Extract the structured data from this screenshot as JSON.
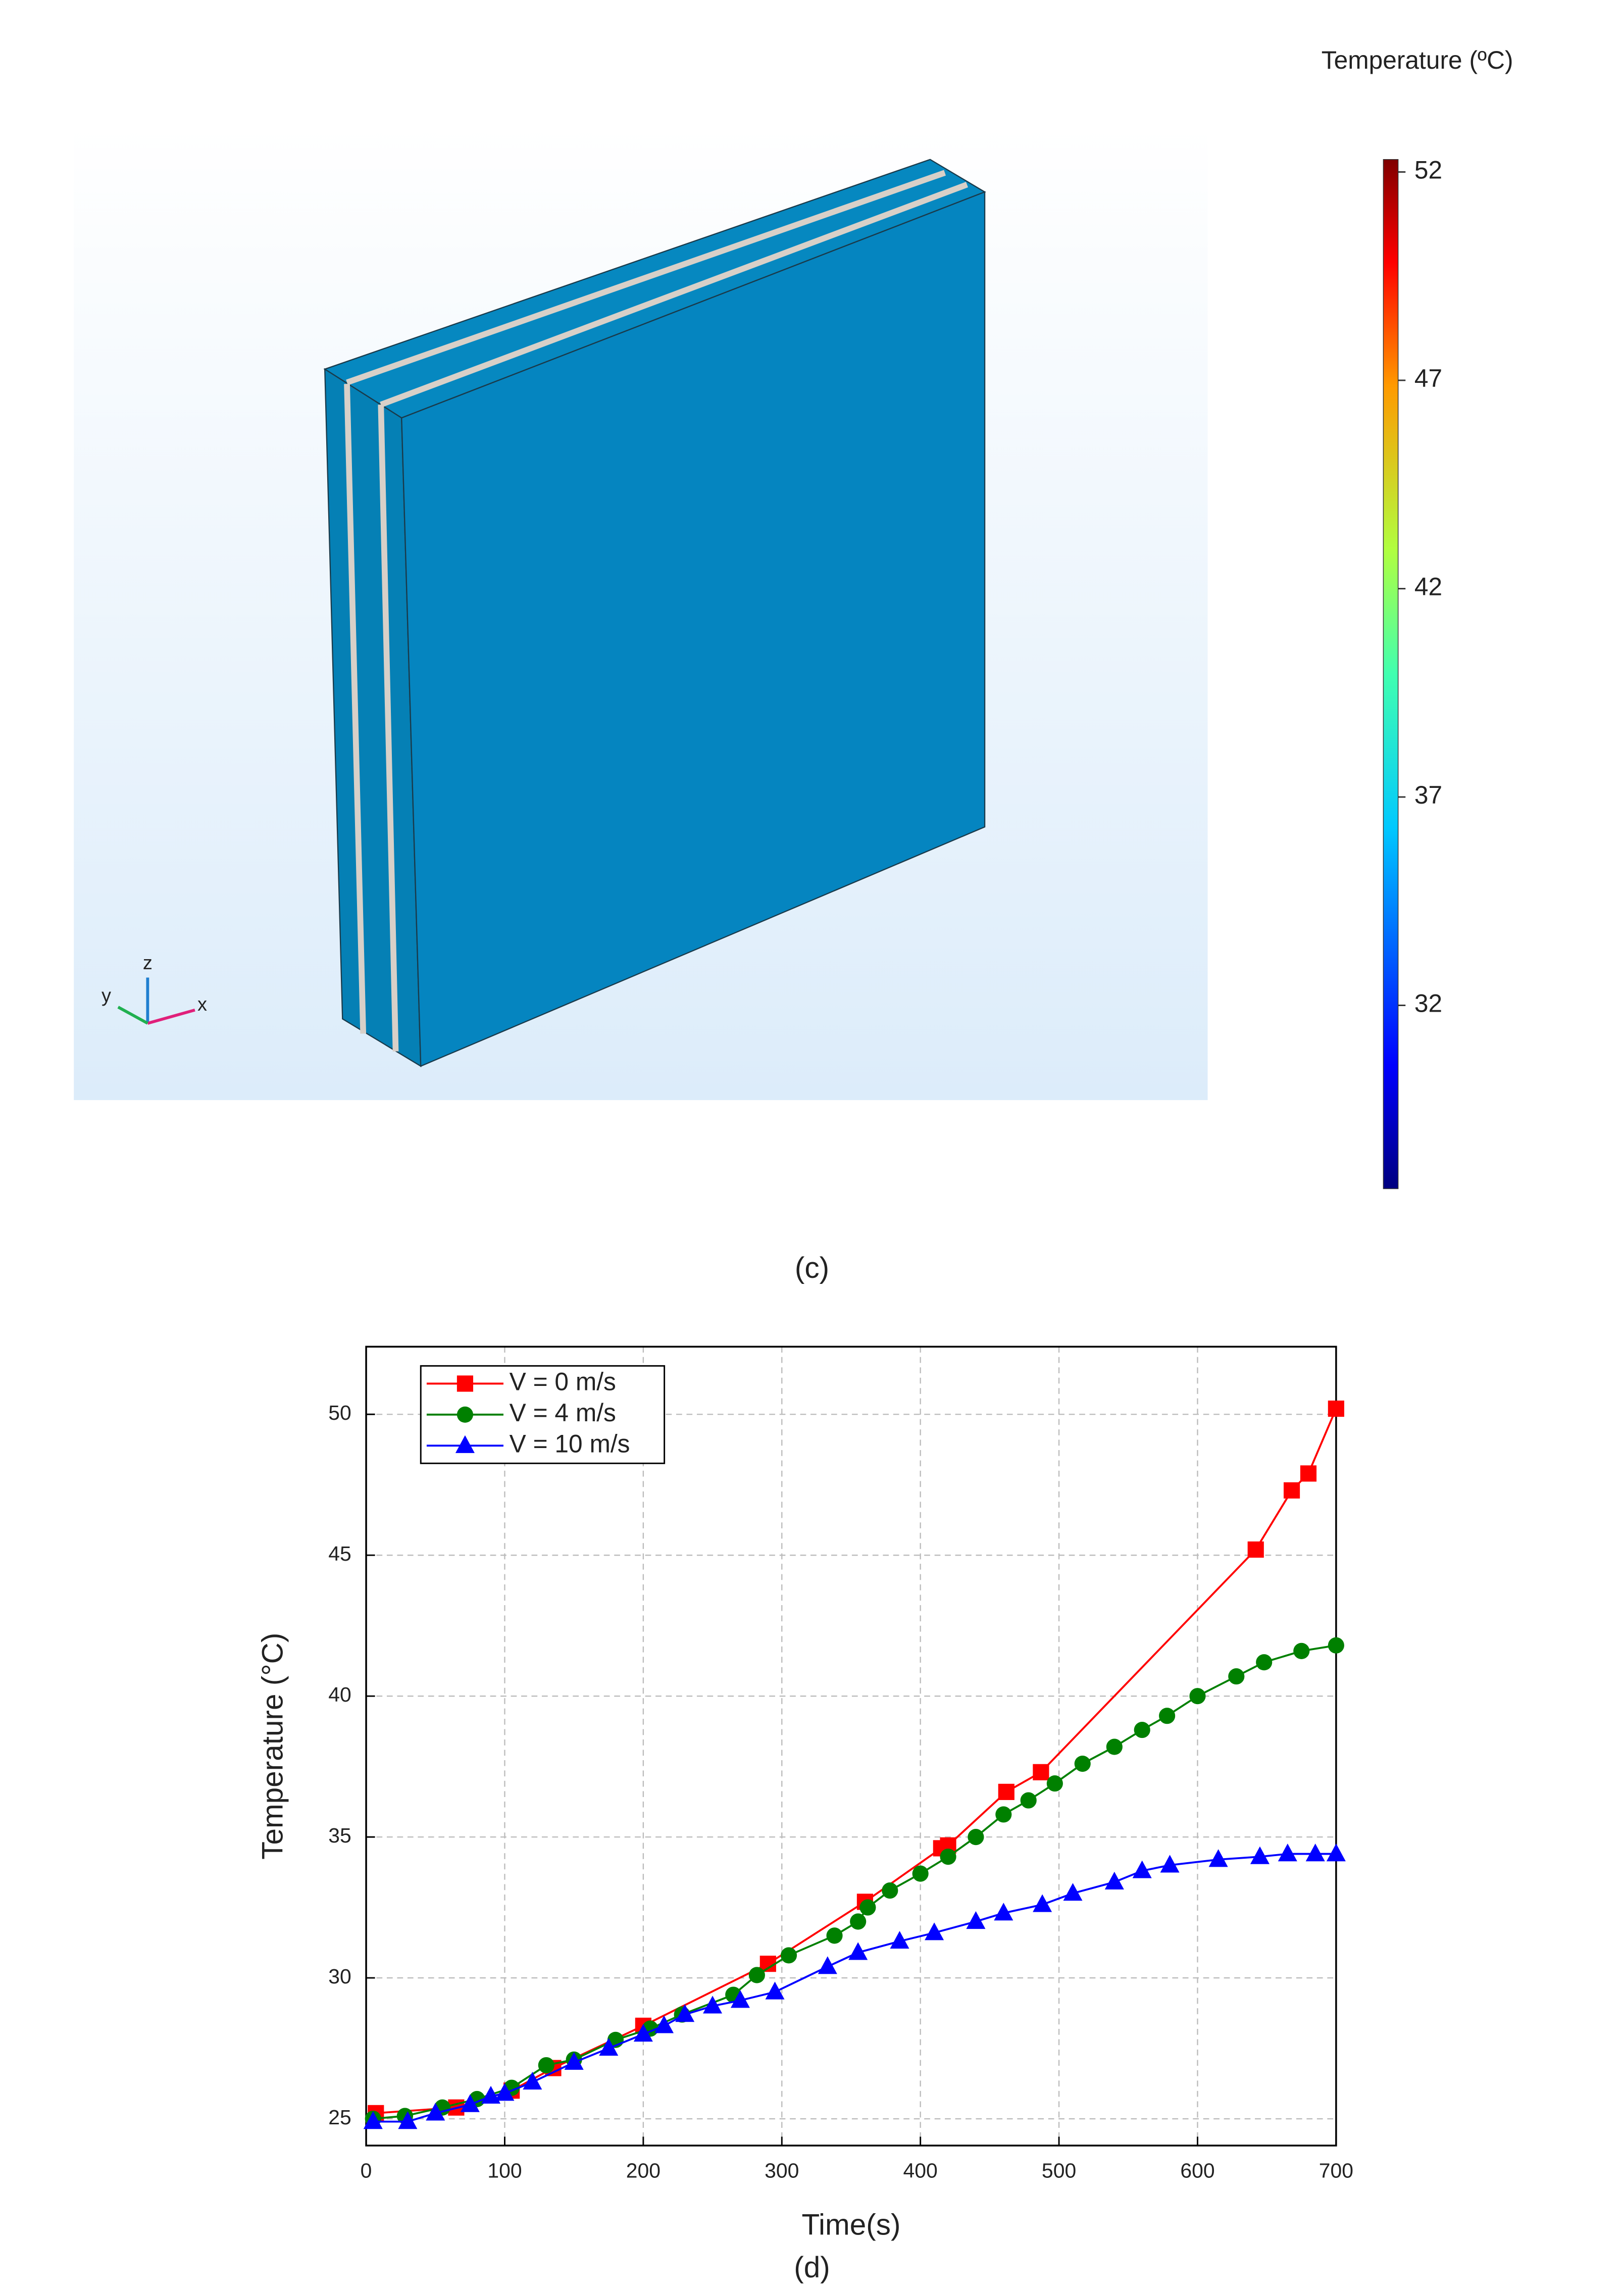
{
  "chart_data": [
    {
      "type": "colorbar",
      "title": "Temperature (ºC)",
      "caption": "(c)",
      "triad_labels": [
        "x",
        "y",
        "z"
      ],
      "clim": [
        27.6,
        52.3
      ],
      "cticks": [
        52,
        47,
        42,
        37,
        32
      ],
      "colormap": "jet"
    },
    {
      "type": "line",
      "caption": "(d)",
      "xlabel": "Time(s)",
      "ylabel": "Temperature (°C)",
      "xlim": [
        0,
        700
      ],
      "ylim": [
        24.05,
        52.4
      ],
      "xticks": [
        0,
        100,
        200,
        300,
        400,
        500,
        600,
        700
      ],
      "yticks": [
        25,
        30,
        35,
        40,
        45,
        50
      ],
      "grid": true,
      "legend": "upper-left",
      "series": [
        {
          "name": "V = 0 m/s",
          "color": "#ff0000",
          "marker": "square",
          "x": [
            7,
            65,
            105,
            135,
            200,
            290,
            360,
            415,
            420,
            462,
            487,
            642,
            668,
            680,
            700
          ],
          "values": [
            25.2,
            25.4,
            26.0,
            26.8,
            28.3,
            30.5,
            32.7,
            34.6,
            34.7,
            36.6,
            37.3,
            45.2,
            47.3,
            47.9,
            50.2
          ]
        },
        {
          "name": "V = 4 m/s",
          "color": "#008000",
          "marker": "circle",
          "x": [
            5,
            28,
            55,
            80,
            105,
            130,
            150,
            180,
            205,
            228,
            265,
            282,
            305,
            338,
            355,
            362,
            378,
            400,
            420,
            440,
            460,
            478,
            497,
            517,
            540,
            560,
            578,
            600,
            628,
            648,
            675,
            700
          ],
          "values": [
            25.0,
            25.1,
            25.4,
            25.7,
            26.1,
            26.9,
            27.1,
            27.8,
            28.2,
            28.7,
            29.4,
            30.1,
            30.8,
            31.5,
            32.0,
            32.5,
            33.1,
            33.7,
            34.3,
            35.0,
            35.8,
            36.3,
            36.9,
            37.6,
            38.2,
            38.8,
            39.3,
            40.0,
            40.7,
            41.2,
            41.6,
            41.8
          ]
        },
        {
          "name": "V = 10 m/s",
          "color": "#0000ff",
          "marker": "triangle",
          "x": [
            5,
            30,
            50,
            75,
            90,
            100,
            120,
            150,
            175,
            200,
            215,
            230,
            250,
            270,
            295,
            333,
            355,
            385,
            410,
            440,
            460,
            488,
            510,
            540,
            560,
            580,
            615,
            645,
            665,
            685,
            700
          ],
          "values": [
            24.9,
            24.9,
            25.2,
            25.5,
            25.8,
            25.9,
            26.3,
            27.0,
            27.5,
            28.0,
            28.3,
            28.7,
            29.0,
            29.2,
            29.5,
            30.4,
            30.9,
            31.3,
            31.6,
            32.0,
            32.3,
            32.6,
            33.0,
            33.4,
            33.8,
            34.0,
            34.2,
            34.3,
            34.4,
            34.4,
            34.4
          ]
        }
      ]
    }
  ]
}
